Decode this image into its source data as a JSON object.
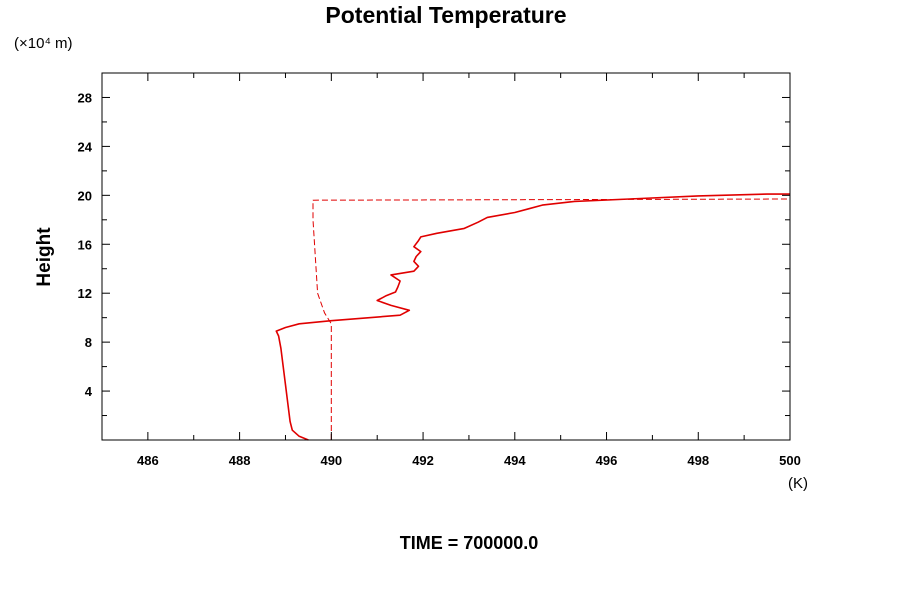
{
  "chart_data": {
    "type": "line",
    "title": "Potential Temperature",
    "y_unit_label": "(×10⁴ m)",
    "ylabel": "Height",
    "xlabel": "(K)",
    "footer": "TIME = 700000.0",
    "xlim": [
      485,
      500
    ],
    "ylim": [
      0,
      30
    ],
    "x_ticks": [
      486,
      488,
      490,
      492,
      494,
      496,
      498,
      500
    ],
    "y_ticks": [
      4,
      8,
      12,
      16,
      20,
      24,
      28
    ],
    "grid": false,
    "legend": "none",
    "series": [
      {
        "style": "solid",
        "color": "#e00000",
        "points": [
          [
            489.5,
            0.0
          ],
          [
            489.3,
            0.3
          ],
          [
            489.15,
            0.8
          ],
          [
            489.1,
            1.5
          ],
          [
            489.05,
            3.0
          ],
          [
            489.0,
            4.5
          ],
          [
            488.95,
            6.0
          ],
          [
            488.9,
            7.5
          ],
          [
            488.85,
            8.5
          ],
          [
            488.8,
            8.9
          ],
          [
            489.0,
            9.2
          ],
          [
            489.3,
            9.5
          ],
          [
            490.0,
            9.75
          ],
          [
            491.5,
            10.2
          ],
          [
            491.7,
            10.6
          ],
          [
            491.3,
            11.0
          ],
          [
            491.0,
            11.4
          ],
          [
            491.2,
            11.8
          ],
          [
            491.4,
            12.1
          ],
          [
            491.45,
            12.5
          ],
          [
            491.5,
            13.0
          ],
          [
            491.3,
            13.5
          ],
          [
            491.8,
            13.8
          ],
          [
            491.9,
            14.2
          ],
          [
            491.8,
            14.6
          ],
          [
            491.85,
            15.0
          ],
          [
            491.95,
            15.4
          ],
          [
            491.8,
            15.8
          ],
          [
            491.9,
            16.3
          ],
          [
            491.95,
            16.6
          ],
          [
            492.3,
            16.9
          ],
          [
            492.9,
            17.3
          ],
          [
            493.2,
            17.8
          ],
          [
            493.4,
            18.2
          ],
          [
            494.0,
            18.6
          ],
          [
            494.3,
            18.9
          ],
          [
            494.6,
            19.2
          ],
          [
            495.3,
            19.5
          ],
          [
            496.5,
            19.7
          ],
          [
            498.0,
            19.95
          ],
          [
            499.5,
            20.1
          ],
          [
            500.0,
            20.1
          ]
        ]
      },
      {
        "style": "dashed",
        "color": "#e00000",
        "points": [
          [
            490.0,
            0.0
          ],
          [
            490.0,
            9.5
          ],
          [
            489.85,
            10.4
          ],
          [
            489.7,
            12.0
          ],
          [
            489.65,
            15.0
          ],
          [
            489.6,
            18.0
          ],
          [
            489.6,
            19.6
          ],
          [
            495.0,
            19.65
          ],
          [
            500.0,
            19.7
          ]
        ]
      }
    ]
  }
}
